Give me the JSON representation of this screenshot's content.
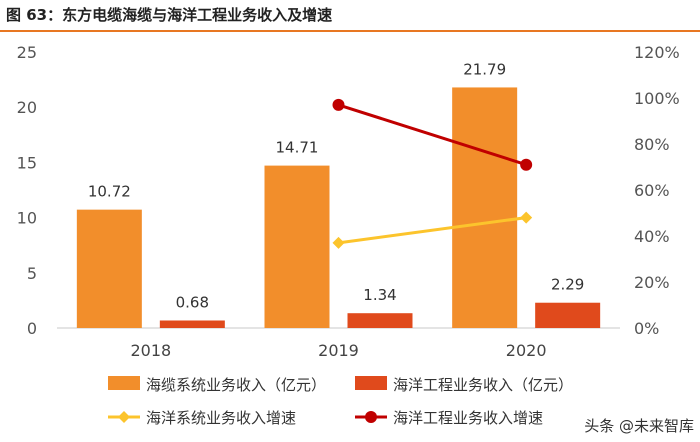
{
  "chart_data": {
    "type": "bar",
    "title": "图 63：东方电缆海缆与海洋工程业务收入及增速",
    "categories": [
      "2018",
      "2019",
      "2020"
    ],
    "series": [
      {
        "name": "海缆系统业务收入（亿元）",
        "kind": "bar",
        "axis": "left",
        "color": "#f28e2b",
        "values": [
          10.72,
          14.71,
          21.79
        ],
        "labels": [
          "10.72",
          "14.71",
          "21.79"
        ]
      },
      {
        "name": "海洋工程业务收入（亿元）",
        "kind": "bar",
        "axis": "left",
        "color": "#e04a1c",
        "values": [
          0.68,
          1.34,
          2.29
        ],
        "labels": [
          "0.68",
          "1.34",
          "2.29"
        ]
      },
      {
        "name": "海洋系统业务收入增速",
        "kind": "line",
        "axis": "right",
        "color": "#fcc42c",
        "values": [
          null,
          37,
          48
        ]
      },
      {
        "name": "海洋工程业务收入增速",
        "kind": "line",
        "axis": "right",
        "color": "#c00000",
        "values": [
          null,
          97,
          71
        ]
      }
    ],
    "y_left": {
      "range": [
        0,
        25
      ],
      "ticks": [
        "0",
        "5",
        "10",
        "15",
        "20",
        "25"
      ]
    },
    "y_right": {
      "range": [
        0,
        120
      ],
      "ticks": [
        "0%",
        "20%",
        "40%",
        "60%",
        "80%",
        "100%",
        "120%"
      ]
    },
    "legend_position": "bottom",
    "grid": false
  },
  "watermark": "头条 @未来智库"
}
